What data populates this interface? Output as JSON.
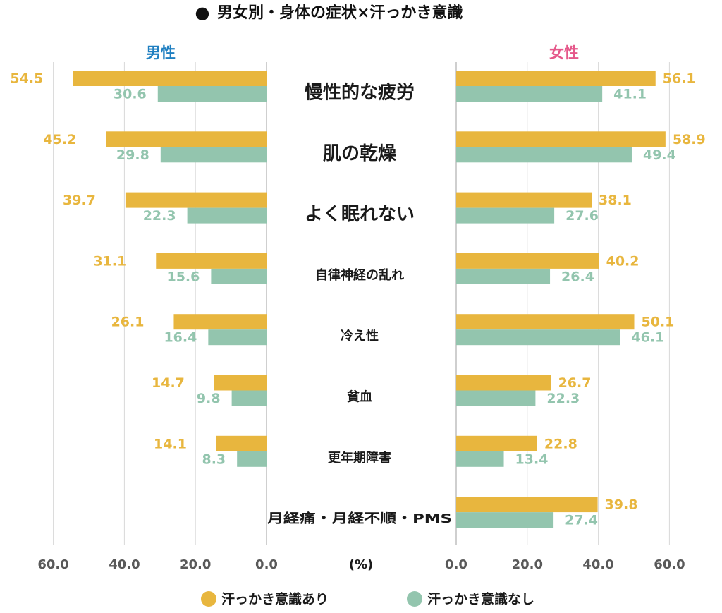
{
  "title_marker": "●",
  "title": "男女別・身体の症状×汗っかき意識",
  "unit_label": "(%)",
  "colors": {
    "aware": "#E8B63E",
    "not_aware": "#93C5AE",
    "male_label": "#1F7FC1",
    "female_label": "#E5588A",
    "grid": "#D9D9D9",
    "axis": "#BFBFBF",
    "tick_text": "#595959",
    "category_text": "#1A1A1A"
  },
  "chart_data": {
    "type": "bar",
    "orientation": "horizontal",
    "layout": "butterfly",
    "categories": [
      "慢性的な疲労",
      "肌の乾燥",
      "よく眠れない",
      "自律神経の乱れ",
      "冷え性",
      "貧血",
      "更年期障害",
      "月経痛・月経不順・PMS"
    ],
    "panels": [
      {
        "name": "男性",
        "side": "left",
        "xlim": [
          0,
          60
        ],
        "ticks": [
          "60.0",
          "40.0",
          "20.0",
          "0.0"
        ],
        "series": [
          {
            "name": "汗っかき意識あり",
            "values": [
              54.5,
              45.2,
              39.7,
              31.1,
              26.1,
              14.7,
              14.1,
              null
            ],
            "labels": [
              "54.5",
              "45.2",
              "39.7",
              "31.1",
              "26.1",
              "14.7",
              "14.1",
              ""
            ]
          },
          {
            "name": "汗っかき意識なし",
            "values": [
              30.6,
              29.8,
              22.3,
              15.6,
              16.4,
              9.8,
              8.3,
              null
            ],
            "labels": [
              "30.6",
              "29.8",
              "22.3",
              "15.6",
              "16.4",
              "9.8",
              "8.3",
              ""
            ]
          }
        ]
      },
      {
        "name": "女性",
        "side": "right",
        "xlim": [
          0,
          60
        ],
        "ticks": [
          "0.0",
          "20.0",
          "40.0",
          "60.0"
        ],
        "series": [
          {
            "name": "汗っかき意識あり",
            "values": [
              56.1,
              58.9,
              38.1,
              40.2,
              50.1,
              26.7,
              22.8,
              39.8
            ],
            "labels": [
              "56.1",
              "58.9",
              "38.1",
              "40.2",
              "50.1",
              "26.7",
              "22.8",
              "39.8"
            ]
          },
          {
            "name": "汗っかき意識なし",
            "values": [
              41.1,
              49.4,
              27.6,
              26.4,
              46.1,
              22.3,
              13.4,
              27.4
            ],
            "labels": [
              "41.1",
              "49.4",
              "27.6",
              "26.4",
              "46.1",
              "22.3",
              "13.4",
              "27.4"
            ]
          }
        ]
      }
    ],
    "legend": {
      "position": "bottom",
      "entries": [
        "汗っかき意識あり",
        "汗っかき意識なし"
      ]
    },
    "grid": true
  }
}
